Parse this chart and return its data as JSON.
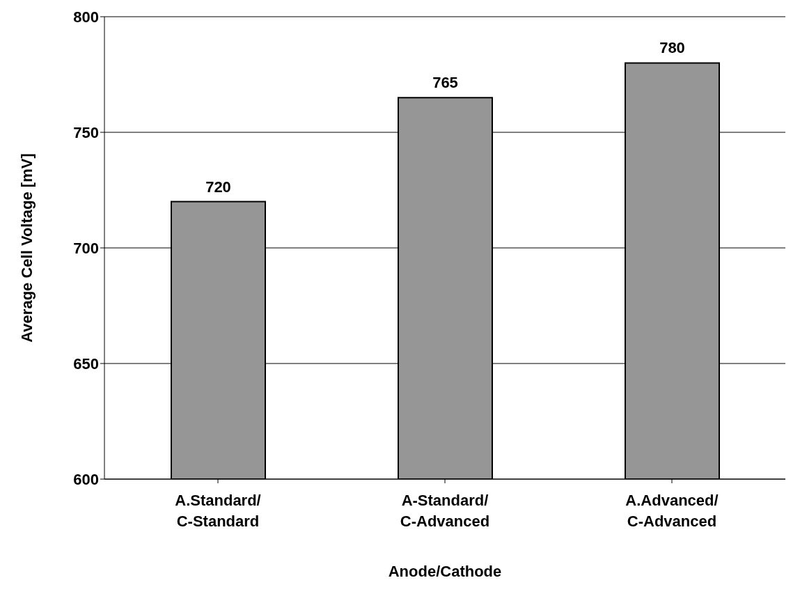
{
  "chart_data": {
    "type": "bar",
    "xlabel": "Anode/Cathode",
    "ylabel": "Average Cell Voltage [mV]",
    "categories": [
      "A.Standard/\nC-Standard",
      "A-Standard/\nC-Advanced",
      "A.Advanced/\nC-Advanced"
    ],
    "values": [
      720,
      765,
      780
    ],
    "color": "#969696",
    "ylim": [
      600,
      800
    ],
    "yticks": [
      600,
      650,
      700,
      750,
      800
    ],
    "grid": "y",
    "data_labels": true
  }
}
